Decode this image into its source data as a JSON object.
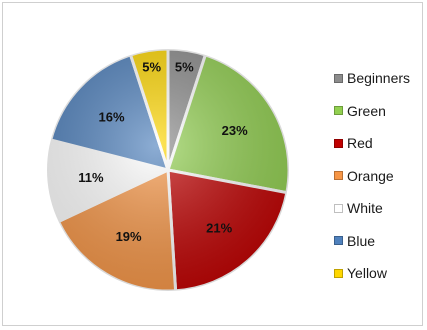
{
  "chart_data": {
    "type": "pie",
    "start_angle_deg": 0,
    "direction": "clockwise",
    "legend_position": "right",
    "slices": [
      {
        "name": "Beginners",
        "value": 5,
        "label": "5%",
        "color": "#8c8c8c"
      },
      {
        "name": "Green",
        "value": 23,
        "label": "23%",
        "color": "#92d050"
      },
      {
        "name": "Red",
        "value": 21,
        "label": "21%",
        "color": "#c00000"
      },
      {
        "name": "Orange",
        "value": 19,
        "label": "19%",
        "color": "#f79646"
      },
      {
        "name": "White",
        "value": 11,
        "label": "11%",
        "color": "#ffffff"
      },
      {
        "name": "Blue",
        "value": 16,
        "label": "16%",
        "color": "#4f81bd"
      },
      {
        "name": "Yellow",
        "value": 5,
        "label": "5%",
        "color": "#ffd700"
      }
    ]
  }
}
